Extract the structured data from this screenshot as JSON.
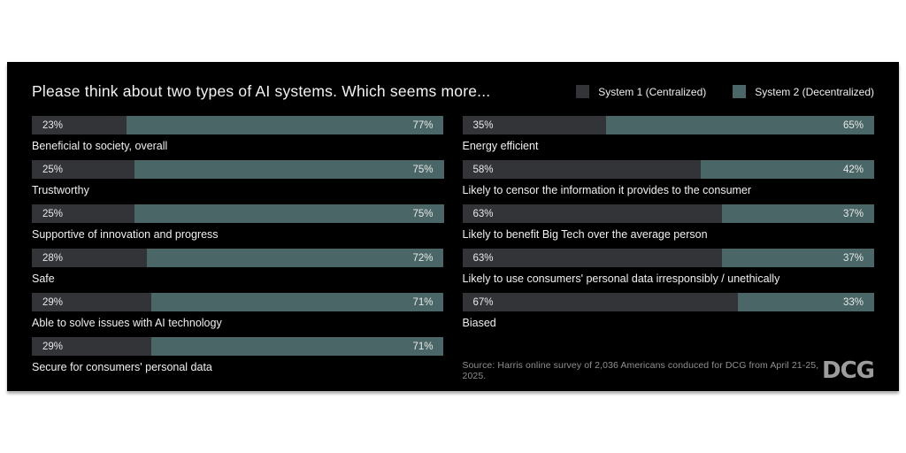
{
  "header": {
    "title": "Please think about two types of AI systems. Which seems more..."
  },
  "legend": {
    "items": [
      {
        "label": "System 1 (Centralized)",
        "color": "#333438"
      },
      {
        "label": "System 2 (Decentralized)",
        "color": "#4b6666"
      }
    ]
  },
  "chart_data": {
    "type": "bar",
    "subtype": "horizontal-100pct-stacked-paired",
    "title": "Please think about two types of AI systems. Which seems more...",
    "series_names": [
      "System 1 (Centralized)",
      "System 2 (Decentralized)"
    ],
    "xlim": [
      0,
      100
    ],
    "grid": false,
    "legend_position": "top-right",
    "columns": [
      {
        "rows": [
          {
            "label": "Beneficial to society, overall",
            "p1": 23,
            "p2": 77,
            "p1_text": "23%",
            "p2_text": "77%"
          },
          {
            "label": "Trustworthy",
            "p1": 25,
            "p2": 75,
            "p1_text": "25%",
            "p2_text": "75%"
          },
          {
            "label": "Supportive of innovation and progress",
            "p1": 25,
            "p2": 75,
            "p1_text": "25%",
            "p2_text": "75%"
          },
          {
            "label": "Safe",
            "p1": 28,
            "p2": 72,
            "p1_text": "28%",
            "p2_text": "72%"
          },
          {
            "label": "Able to solve issues with AI technology",
            "p1": 29,
            "p2": 71,
            "p1_text": "29%",
            "p2_text": "71%"
          },
          {
            "label": "Secure for consumers' personal data",
            "p1": 29,
            "p2": 71,
            "p1_text": "29%",
            "p2_text": "71%"
          }
        ]
      },
      {
        "rows": [
          {
            "label": "Energy efficient",
            "p1": 35,
            "p2": 65,
            "p1_text": "35%",
            "p2_text": "65%"
          },
          {
            "label": "Likely to censor the information it provides to the consumer",
            "p1": 58,
            "p2": 42,
            "p1_text": "58%",
            "p2_text": "42%"
          },
          {
            "label": "Likely to benefit Big Tech over the average person",
            "p1": 63,
            "p2": 37,
            "p1_text": "63%",
            "p2_text": "37%"
          },
          {
            "label": "Likely to use consumers' personal data irresponsibly / unethically",
            "p1": 63,
            "p2": 37,
            "p1_text": "63%",
            "p2_text": "37%"
          },
          {
            "label": "Biased",
            "p1": 67,
            "p2": 33,
            "p1_text": "67%",
            "p2_text": "33%"
          }
        ]
      }
    ]
  },
  "footer": {
    "source": "Source: Harris online survey of 2,036 Americans conduced for DCG from April 21-25, 2025.",
    "logo_text": "DCG"
  },
  "colors": {
    "page_bg": "#ffffff",
    "panel_bg": "#000000",
    "system1": "#333438",
    "system2": "#4b6666",
    "title_text": "#f3f3f3",
    "label_text": "#f0f0f0",
    "value_text": "#e6e9e9",
    "source_text": "#8f8f8f",
    "logo": "#9c9c9c"
  }
}
